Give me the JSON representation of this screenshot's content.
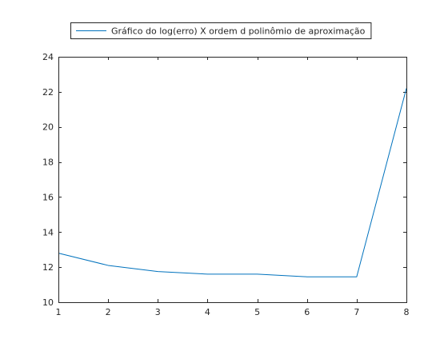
{
  "chart_data": {
    "type": "line",
    "title": "",
    "xlabel": "",
    "ylabel": "",
    "xlim": [
      1,
      8
    ],
    "ylim": [
      10,
      24
    ],
    "x_ticks": [
      1,
      2,
      3,
      4,
      5,
      6,
      7,
      8
    ],
    "y_ticks": [
      10,
      12,
      14,
      16,
      18,
      20,
      22,
      24
    ],
    "grid": false,
    "legend_position": "top-center",
    "series": [
      {
        "name": "Gráfico do log(erro) X ordem d polinômio de aproximação",
        "color": "#0072BD",
        "x": [
          1,
          2,
          3,
          4,
          5,
          6,
          7,
          8
        ],
        "y": [
          12.8,
          12.1,
          11.75,
          11.6,
          11.6,
          11.45,
          11.45,
          22.2
        ]
      }
    ]
  }
}
